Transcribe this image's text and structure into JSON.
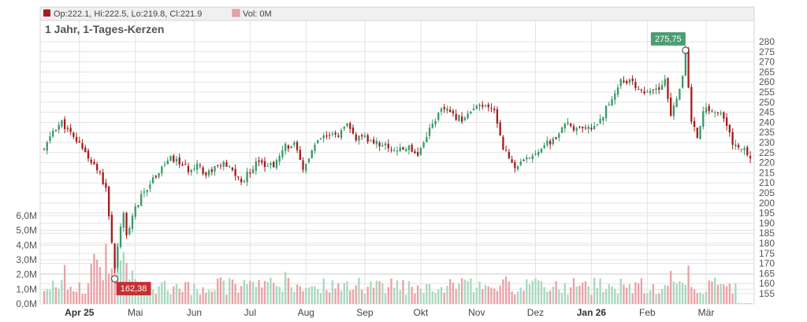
{
  "legend": {
    "ohlc_text": "Op:222.1, Hi:222.5, Lo:219.8, Cl:221.9",
    "ohlc_icon": "square-dark-red",
    "vol_text": "Vol: 0M",
    "vol_icon": "square-light-red"
  },
  "title": "1 Jahr, 1-Tages-Kerzen",
  "colors": {
    "up": "#3a9a6a",
    "down": "#a31d1d",
    "vol_up": "#a9d8bf",
    "vol_down": "#eaa2a6",
    "grid": "#e3e3e3",
    "high_badge": "#4a9e72",
    "low_badge": "#c62f34"
  },
  "callouts": {
    "high": "275,75",
    "low": "162,38"
  },
  "chart_data": {
    "type": "candlestick",
    "y_price_axis": {
      "ticks": [
        155,
        160,
        165,
        170,
        175,
        180,
        185,
        190,
        195,
        200,
        205,
        210,
        215,
        220,
        225,
        230,
        235,
        240,
        245,
        250,
        255,
        260,
        265,
        270,
        275,
        280
      ],
      "range": [
        150,
        283
      ]
    },
    "y_volume_axis": {
      "ticks": [
        "0,0M",
        "1,0M",
        "2,0M",
        "3,0M",
        "4,0M",
        "5,0M",
        "6,0M"
      ],
      "range": [
        0,
        6.5
      ]
    },
    "x_axis_labels": [
      {
        "label": "Apr 25",
        "bold": true
      },
      {
        "label": "Mai",
        "bold": false
      },
      {
        "label": "Jun",
        "bold": false
      },
      {
        "label": "Jul",
        "bold": false
      },
      {
        "label": "Aug",
        "bold": false
      },
      {
        "label": "Sep",
        "bold": false
      },
      {
        "label": "Okt",
        "bold": false
      },
      {
        "label": "Nov",
        "bold": false
      },
      {
        "label": "Dez",
        "bold": false
      },
      {
        "label": "Jan 26",
        "bold": true
      },
      {
        "label": "Feb",
        "bold": false
      },
      {
        "label": "Mär",
        "bold": false
      }
    ],
    "close_path": [
      [
        0,
        226
      ],
      [
        3,
        236
      ],
      [
        6,
        240
      ],
      [
        10,
        232
      ],
      [
        13,
        228
      ],
      [
        16,
        220
      ],
      [
        19,
        214
      ],
      [
        21,
        206
      ],
      [
        22,
        194
      ],
      [
        23,
        180
      ],
      [
        24,
        168
      ],
      [
        25,
        178
      ],
      [
        26,
        187
      ],
      [
        27,
        195
      ],
      [
        28,
        183
      ],
      [
        29,
        189
      ],
      [
        31,
        197
      ],
      [
        33,
        203
      ],
      [
        35,
        208
      ],
      [
        37,
        212
      ],
      [
        40,
        218
      ],
      [
        43,
        222
      ],
      [
        46,
        220
      ],
      [
        49,
        216
      ],
      [
        52,
        220
      ],
      [
        55,
        214
      ],
      [
        58,
        218
      ],
      [
        61,
        219
      ],
      [
        64,
        216
      ],
      [
        67,
        210
      ],
      [
        70,
        216
      ],
      [
        73,
        222
      ],
      [
        76,
        218
      ],
      [
        79,
        220
      ],
      [
        82,
        228
      ],
      [
        85,
        229
      ],
      [
        88,
        216
      ],
      [
        91,
        226
      ],
      [
        94,
        232
      ],
      [
        97,
        233
      ],
      [
        100,
        234
      ],
      [
        103,
        238
      ],
      [
        106,
        232
      ],
      [
        109,
        232
      ],
      [
        112,
        230
      ],
      [
        115,
        229
      ],
      [
        118,
        227
      ],
      [
        121,
        226
      ],
      [
        124,
        228
      ],
      [
        127,
        224
      ],
      [
        130,
        234
      ],
      [
        133,
        242
      ],
      [
        136,
        247
      ],
      [
        139,
        243
      ],
      [
        142,
        242
      ],
      [
        145,
        245
      ],
      [
        148,
        248
      ],
      [
        151,
        247
      ],
      [
        153,
        246
      ],
      [
        156,
        228
      ],
      [
        158,
        222
      ],
      [
        160,
        218
      ],
      [
        163,
        220
      ],
      [
        166,
        224
      ],
      [
        169,
        228
      ],
      [
        172,
        230
      ],
      [
        175,
        234
      ],
      [
        178,
        240
      ],
      [
        181,
        236
      ],
      [
        184,
        236
      ],
      [
        187,
        238
      ],
      [
        190,
        244
      ],
      [
        193,
        252
      ],
      [
        196,
        261
      ],
      [
        199,
        260
      ],
      [
        202,
        257
      ],
      [
        205,
        254
      ],
      [
        208,
        256
      ],
      [
        211,
        260
      ],
      [
        213,
        243
      ],
      [
        215,
        253
      ],
      [
        217,
        262
      ],
      [
        218,
        275
      ],
      [
        220,
        240
      ],
      [
        222,
        233
      ],
      [
        224,
        246
      ],
      [
        227,
        246
      ],
      [
        230,
        244
      ],
      [
        232,
        238
      ],
      [
        234,
        230
      ],
      [
        236,
        227
      ],
      [
        238,
        226
      ],
      [
        240,
        223
      ]
    ],
    "highlights": {
      "high": {
        "value": 275.75,
        "index": 218
      },
      "low": {
        "value": 162.38,
        "index": 24
      }
    }
  }
}
